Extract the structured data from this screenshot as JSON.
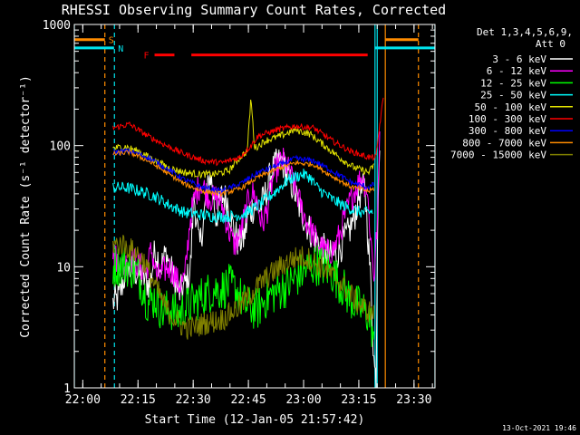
{
  "chart_data": {
    "type": "line",
    "title": "RHESSI Observing Summary Count Rates, Corrected",
    "xlabel": "Start Time (12-Jan-05 21:57:42)",
    "ylabel": "Corrected Count Rate (s⁻¹ detector⁻¹)",
    "x_unit": "minutes after 21:57:42",
    "xlim": [
      0,
      98
    ],
    "ylim": [
      1,
      1000
    ],
    "yscale": "log",
    "x_ticks": [
      {
        "label": "22:00",
        "value": 2.3
      },
      {
        "label": "22:15",
        "value": 17.3
      },
      {
        "label": "22:30",
        "value": 32.3
      },
      {
        "label": "22:45",
        "value": 47.3
      },
      {
        "label": "23:00",
        "value": 62.3
      },
      {
        "label": "23:15",
        "value": 77.3
      },
      {
        "label": "23:30",
        "value": 92.3
      }
    ],
    "y_ticks": [
      {
        "label": "1",
        "value": 1
      },
      {
        "label": "10",
        "value": 10
      },
      {
        "label": "100",
        "value": 100
      },
      {
        "label": "1000",
        "value": 1000
      }
    ],
    "legend_header": [
      "Det 1,3,4,5,6,9,",
      "Att 0"
    ],
    "legend_position": "right",
    "footer_date": "13-Oct-2021 19:46",
    "flags": [
      {
        "label": "S",
        "color": "#ff8c00",
        "y": 750,
        "segments": [
          [
            0,
            8.3
          ],
          [
            84.5,
            93.5
          ]
        ]
      },
      {
        "label": "N",
        "color": "#00e5ee",
        "y": 640,
        "segments": [
          [
            0,
            10.8
          ],
          [
            81.6,
            98
          ]
        ]
      },
      {
        "label": "F",
        "color": "#ff0000",
        "y": 560,
        "segments": [
          [
            21.8,
            27.2
          ],
          [
            31.8,
            79.7
          ]
        ]
      }
    ],
    "vlines": [
      {
        "x": 0,
        "color": "#00e5ee",
        "style": "solid"
      },
      {
        "x": 8.3,
        "color": "#ff8c00",
        "style": "dashed"
      },
      {
        "x": 10.9,
        "color": "#00e5ee",
        "style": "dashed"
      },
      {
        "x": 81.7,
        "color": "#00e5ee",
        "style": "solid"
      },
      {
        "x": 82.3,
        "color": "#00e5ee",
        "style": "solid"
      },
      {
        "x": 84.5,
        "color": "#ff8c00",
        "style": "solid"
      },
      {
        "x": 93.5,
        "color": "#ff8c00",
        "style": "dashed"
      },
      {
        "x": 98,
        "color": "#00e5ee",
        "style": "solid"
      }
    ],
    "series": [
      {
        "name": "3 - 6 keV",
        "color": "#ffffff",
        "noise": 0.14,
        "points": [
          [
            10.5,
            5
          ],
          [
            12,
            5.5
          ],
          [
            13,
            7
          ],
          [
            14,
            9
          ],
          [
            15,
            9.5
          ],
          [
            17,
            9
          ],
          [
            19,
            8
          ],
          [
            20.5,
            7
          ],
          [
            22,
            14
          ],
          [
            23.5,
            10
          ],
          [
            25,
            13
          ],
          [
            27,
            8
          ],
          [
            28.5,
            6
          ],
          [
            30,
            7
          ],
          [
            31.5,
            9
          ],
          [
            32.5,
            40
          ],
          [
            34,
            14
          ],
          [
            35.5,
            30
          ],
          [
            37,
            60
          ],
          [
            38.5,
            25
          ],
          [
            40,
            38
          ],
          [
            41.5,
            36
          ],
          [
            43,
            22
          ],
          [
            44.5,
            16
          ],
          [
            46,
            17
          ],
          [
            47.5,
            28
          ],
          [
            49,
            32
          ],
          [
            50.5,
            30
          ],
          [
            52,
            40
          ],
          [
            53.5,
            60
          ],
          [
            55,
            70
          ],
          [
            56.5,
            75
          ],
          [
            58,
            55
          ],
          [
            59.5,
            45
          ],
          [
            61,
            32
          ],
          [
            62.5,
            25
          ],
          [
            64,
            20
          ],
          [
            65.5,
            17
          ],
          [
            67,
            15
          ],
          [
            68.5,
            13
          ],
          [
            70,
            12
          ],
          [
            71.5,
            13
          ],
          [
            73,
            16
          ],
          [
            74.5,
            19
          ],
          [
            76,
            25
          ],
          [
            77.5,
            40
          ],
          [
            79,
            45
          ],
          [
            80.5,
            8
          ],
          [
            81.5,
            1.5
          ],
          [
            82,
            1.2
          ],
          [
            82.5,
            40
          ],
          [
            83,
            120
          ]
        ]
      },
      {
        "name": "6 - 12 keV",
        "color": "#ff00ff",
        "noise": 0.12,
        "points": [
          [
            10.5,
            13
          ],
          [
            12,
            11
          ],
          [
            13.5,
            10
          ],
          [
            15,
            12
          ],
          [
            16.5,
            11
          ],
          [
            18,
            10
          ],
          [
            19.5,
            9
          ],
          [
            21,
            14
          ],
          [
            22.5,
            8
          ],
          [
            24,
            9
          ],
          [
            25.5,
            10
          ],
          [
            27,
            9
          ],
          [
            28.5,
            7
          ],
          [
            30,
            8
          ],
          [
            31.5,
            25
          ],
          [
            33,
            40
          ],
          [
            34.5,
            50
          ],
          [
            36,
            40
          ],
          [
            37.5,
            36
          ],
          [
            39,
            38
          ],
          [
            40.5,
            30
          ],
          [
            42,
            20
          ],
          [
            43.5,
            15
          ],
          [
            45,
            18
          ],
          [
            46.5,
            28
          ],
          [
            48,
            42
          ],
          [
            49.5,
            36
          ],
          [
            51,
            22
          ],
          [
            52.5,
            30
          ],
          [
            54,
            55
          ],
          [
            55.5,
            70
          ],
          [
            57,
            75
          ],
          [
            58.5,
            60
          ],
          [
            60,
            45
          ],
          [
            61.5,
            32
          ],
          [
            63,
            24
          ],
          [
            64.5,
            20
          ],
          [
            66,
            16
          ],
          [
            67.5,
            14
          ],
          [
            69,
            13
          ],
          [
            70.5,
            14
          ],
          [
            72,
            18
          ],
          [
            73.5,
            26
          ],
          [
            75,
            35
          ],
          [
            76.5,
            45
          ],
          [
            78,
            55
          ],
          [
            79.5,
            45
          ],
          [
            80.5,
            18
          ],
          [
            81.5,
            8
          ],
          [
            82.5,
            30
          ],
          [
            83,
            130
          ]
        ]
      },
      {
        "name": "12 - 25 keV",
        "color": "#00ff00",
        "noise": 0.18,
        "points": [
          [
            10.5,
            10
          ],
          [
            13,
            10.5
          ],
          [
            15,
            10
          ],
          [
            17,
            9
          ],
          [
            18.5,
            7
          ],
          [
            20,
            5
          ],
          [
            22,
            5.5
          ],
          [
            24,
            4.2
          ],
          [
            26,
            4.5
          ],
          [
            28,
            4
          ],
          [
            30,
            4.5
          ],
          [
            32,
            5
          ],
          [
            34,
            5.5
          ],
          [
            36,
            6
          ],
          [
            38,
            6.5
          ],
          [
            40,
            6.5
          ],
          [
            42,
            7
          ],
          [
            44,
            6.5
          ],
          [
            46,
            5
          ],
          [
            48,
            4.5
          ],
          [
            50,
            4.5
          ],
          [
            52,
            5.5
          ],
          [
            54,
            6
          ],
          [
            56,
            6.5
          ],
          [
            58,
            7
          ],
          [
            60,
            8
          ],
          [
            62,
            9
          ],
          [
            64,
            10
          ],
          [
            66,
            10.5
          ],
          [
            68,
            10
          ],
          [
            70,
            9
          ],
          [
            72,
            7.5
          ],
          [
            74,
            6
          ],
          [
            76,
            5
          ],
          [
            78,
            4.5
          ],
          [
            80,
            4
          ],
          [
            81,
            3
          ],
          [
            81.6,
            2
          ]
        ]
      },
      {
        "name": "25 - 50 keV",
        "color": "#00ffff",
        "noise": 0.05,
        "points": [
          [
            10.5,
            45
          ],
          [
            14,
            45
          ],
          [
            18,
            42
          ],
          [
            22,
            38
          ],
          [
            26,
            32
          ],
          [
            30,
            28
          ],
          [
            34,
            27
          ],
          [
            38,
            26
          ],
          [
            42,
            26
          ],
          [
            46,
            27
          ],
          [
            50,
            32
          ],
          [
            54,
            40
          ],
          [
            58,
            52
          ],
          [
            62,
            58
          ],
          [
            64,
            55
          ],
          [
            66,
            45
          ],
          [
            70,
            36
          ],
          [
            74,
            31
          ],
          [
            78,
            28
          ],
          [
            80,
            28
          ],
          [
            81.2,
            29
          ]
        ]
      },
      {
        "name": "50 - 100 keV",
        "color": "#e0e000",
        "noise": 0.03,
        "points": [
          [
            10.5,
            95
          ],
          [
            14,
            98
          ],
          [
            18,
            88
          ],
          [
            22,
            75
          ],
          [
            26,
            65
          ],
          [
            30,
            60
          ],
          [
            34,
            58
          ],
          [
            38,
            58
          ],
          [
            42,
            62
          ],
          [
            45,
            80
          ],
          [
            47,
            90
          ],
          [
            48,
            250
          ],
          [
            49,
            95
          ],
          [
            52,
            110
          ],
          [
            56,
            120
          ],
          [
            60,
            135
          ],
          [
            64,
            125
          ],
          [
            68,
            100
          ],
          [
            72,
            80
          ],
          [
            76,
            66
          ],
          [
            80,
            60
          ],
          [
            81.5,
            70
          ]
        ]
      },
      {
        "name": "100 - 300 keV",
        "color": "#ff0000",
        "noise": 0.025,
        "points": [
          [
            10.5,
            140
          ],
          [
            15,
            150
          ],
          [
            20,
            120
          ],
          [
            25,
            100
          ],
          [
            30,
            85
          ],
          [
            35,
            75
          ],
          [
            40,
            72
          ],
          [
            45,
            80
          ],
          [
            48,
            100
          ],
          [
            50,
            120
          ],
          [
            55,
            135
          ],
          [
            60,
            145
          ],
          [
            65,
            140
          ],
          [
            70,
            110
          ],
          [
            75,
            90
          ],
          [
            80,
            80
          ],
          [
            82,
            80
          ],
          [
            83,
            150
          ],
          [
            84,
            250
          ]
        ]
      },
      {
        "name": "300 - 800 keV",
        "color": "#0000ff",
        "noise": 0.025,
        "points": [
          [
            10.5,
            88
          ],
          [
            15,
            90
          ],
          [
            20,
            80
          ],
          [
            25,
            65
          ],
          [
            30,
            52
          ],
          [
            35,
            45
          ],
          [
            40,
            42
          ],
          [
            45,
            48
          ],
          [
            50,
            60
          ],
          [
            55,
            68
          ],
          [
            60,
            78
          ],
          [
            65,
            75
          ],
          [
            70,
            62
          ],
          [
            75,
            50
          ],
          [
            80,
            45
          ],
          [
            81.5,
            48
          ]
        ]
      },
      {
        "name": "800 - 7000 keV",
        "color": "#ff8c00",
        "noise": 0.02,
        "points": [
          [
            10.5,
            85
          ],
          [
            15,
            88
          ],
          [
            20,
            75
          ],
          [
            25,
            60
          ],
          [
            30,
            48
          ],
          [
            35,
            42
          ],
          [
            40,
            40
          ],
          [
            45,
            44
          ],
          [
            50,
            55
          ],
          [
            55,
            64
          ],
          [
            60,
            72
          ],
          [
            65,
            70
          ],
          [
            70,
            56
          ],
          [
            75,
            46
          ],
          [
            80,
            42
          ],
          [
            81.5,
            44
          ]
        ]
      },
      {
        "name": "7000 - 15000 keV",
        "color": "#808000",
        "noise": 0.1,
        "points": [
          [
            10.5,
            15
          ],
          [
            13,
            15.5
          ],
          [
            15,
            14
          ],
          [
            17,
            13
          ],
          [
            19,
            11
          ],
          [
            21,
            8
          ],
          [
            23,
            6
          ],
          [
            25,
            4.5
          ],
          [
            27,
            3.8
          ],
          [
            29,
            3.3
          ],
          [
            31,
            3.1
          ],
          [
            33,
            3.2
          ],
          [
            35,
            3.4
          ],
          [
            37,
            3.5
          ],
          [
            39,
            3.6
          ],
          [
            41,
            3.8
          ],
          [
            43,
            4.3
          ],
          [
            45,
            4.7
          ],
          [
            47,
            5.5
          ],
          [
            49,
            6.5
          ],
          [
            51,
            7.5
          ],
          [
            53,
            8.5
          ],
          [
            55,
            9.5
          ],
          [
            57,
            10.5
          ],
          [
            59,
            11.5
          ],
          [
            61,
            12
          ],
          [
            63,
            12
          ],
          [
            65,
            11
          ],
          [
            67,
            10
          ],
          [
            69,
            9
          ],
          [
            71,
            8
          ],
          [
            73,
            7
          ],
          [
            75,
            6
          ],
          [
            77,
            5
          ],
          [
            79,
            4.5
          ],
          [
            80.5,
            4.2
          ],
          [
            81.5,
            4
          ]
        ]
      }
    ]
  }
}
